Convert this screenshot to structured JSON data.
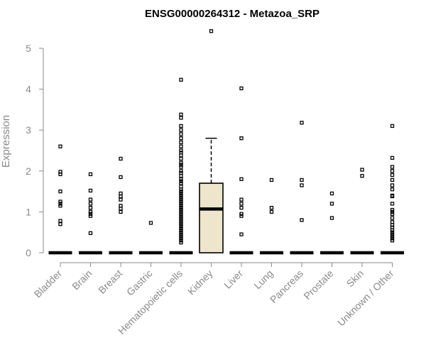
{
  "chart_data": {
    "type": "box",
    "title": "ENSG00000264312 - Metazoa_SRP",
    "ylabel": "Expression",
    "ylim": [
      0,
      5
    ],
    "yticks": [
      0,
      1,
      2,
      3,
      4,
      5
    ],
    "categories": [
      "Bladder",
      "Brain",
      "Breast",
      "Gastric",
      "Hematopoietic cells",
      "Kidney",
      "Liver",
      "Lung",
      "Pancreas",
      "Prostate",
      "Skin",
      "Unknown / Other"
    ],
    "groups": [
      {
        "category": "Bladder",
        "median": 0,
        "outliers": [
          2.6,
          1.98,
          1.92,
          1.5,
          1.25,
          1.2,
          1.15,
          0.78,
          0.7
        ]
      },
      {
        "category": "Brain",
        "median": 0,
        "outliers": [
          1.92,
          1.52,
          1.3,
          1.2,
          1.1,
          1.0,
          0.95,
          0.9,
          0.48
        ]
      },
      {
        "category": "Breast",
        "median": 0,
        "outliers": [
          2.3,
          1.85,
          1.45,
          1.38,
          1.3,
          1.15,
          1.08,
          1.0
        ]
      },
      {
        "category": "Gastric",
        "median": 0,
        "outliers": [
          0.73
        ]
      },
      {
        "category": "Hematopoietic cells",
        "median": 0,
        "outliers": [
          4.23,
          3.38,
          3.3,
          3.1,
          3.0,
          2.9,
          2.8,
          2.7,
          2.6,
          2.5,
          2.45,
          2.38,
          2.3,
          2.2,
          2.15,
          2.1,
          2.0,
          1.95,
          1.88,
          1.8,
          1.75,
          1.7,
          1.62,
          1.55,
          1.5,
          1.45,
          1.4,
          1.35,
          1.3,
          1.25,
          1.2,
          1.15,
          1.1,
          1.05,
          1.0,
          0.95,
          0.9,
          0.85,
          0.8,
          0.75,
          0.7,
          0.65,
          0.6,
          0.55,
          0.5,
          0.45,
          0.4,
          0.35,
          0.3,
          0.25
        ]
      },
      {
        "category": "Kidney",
        "q1": 0,
        "median": 1.07,
        "q3": 1.7,
        "whisker_low": 0,
        "whisker_high": 2.8,
        "outliers": [
          5.42
        ]
      },
      {
        "category": "Liver",
        "median": 0,
        "outliers": [
          4.02,
          2.8,
          1.8,
          1.3,
          1.2,
          1.1,
          0.95,
          0.9,
          0.45
        ]
      },
      {
        "category": "Lung",
        "median": 0,
        "outliers": [
          1.78,
          1.1,
          1.0
        ]
      },
      {
        "category": "Pancreas",
        "median": 0,
        "outliers": [
          3.18,
          1.78,
          1.65,
          0.8
        ]
      },
      {
        "category": "Prostate",
        "median": 0,
        "outliers": [
          1.45,
          1.2,
          0.85
        ]
      },
      {
        "category": "Skin",
        "median": 0,
        "outliers": [
          2.03,
          1.88
        ]
      },
      {
        "category": "Unknown / Other",
        "median": 0,
        "outliers": [
          3.1,
          2.32,
          2.1,
          2.0,
          1.9,
          1.78,
          1.65,
          1.55,
          1.4,
          1.38,
          1.2,
          1.05,
          1.0,
          0.95,
          0.85,
          0.75,
          0.68,
          0.62,
          0.55,
          0.5,
          0.45,
          0.4,
          0.35,
          0.3
        ]
      }
    ]
  }
}
